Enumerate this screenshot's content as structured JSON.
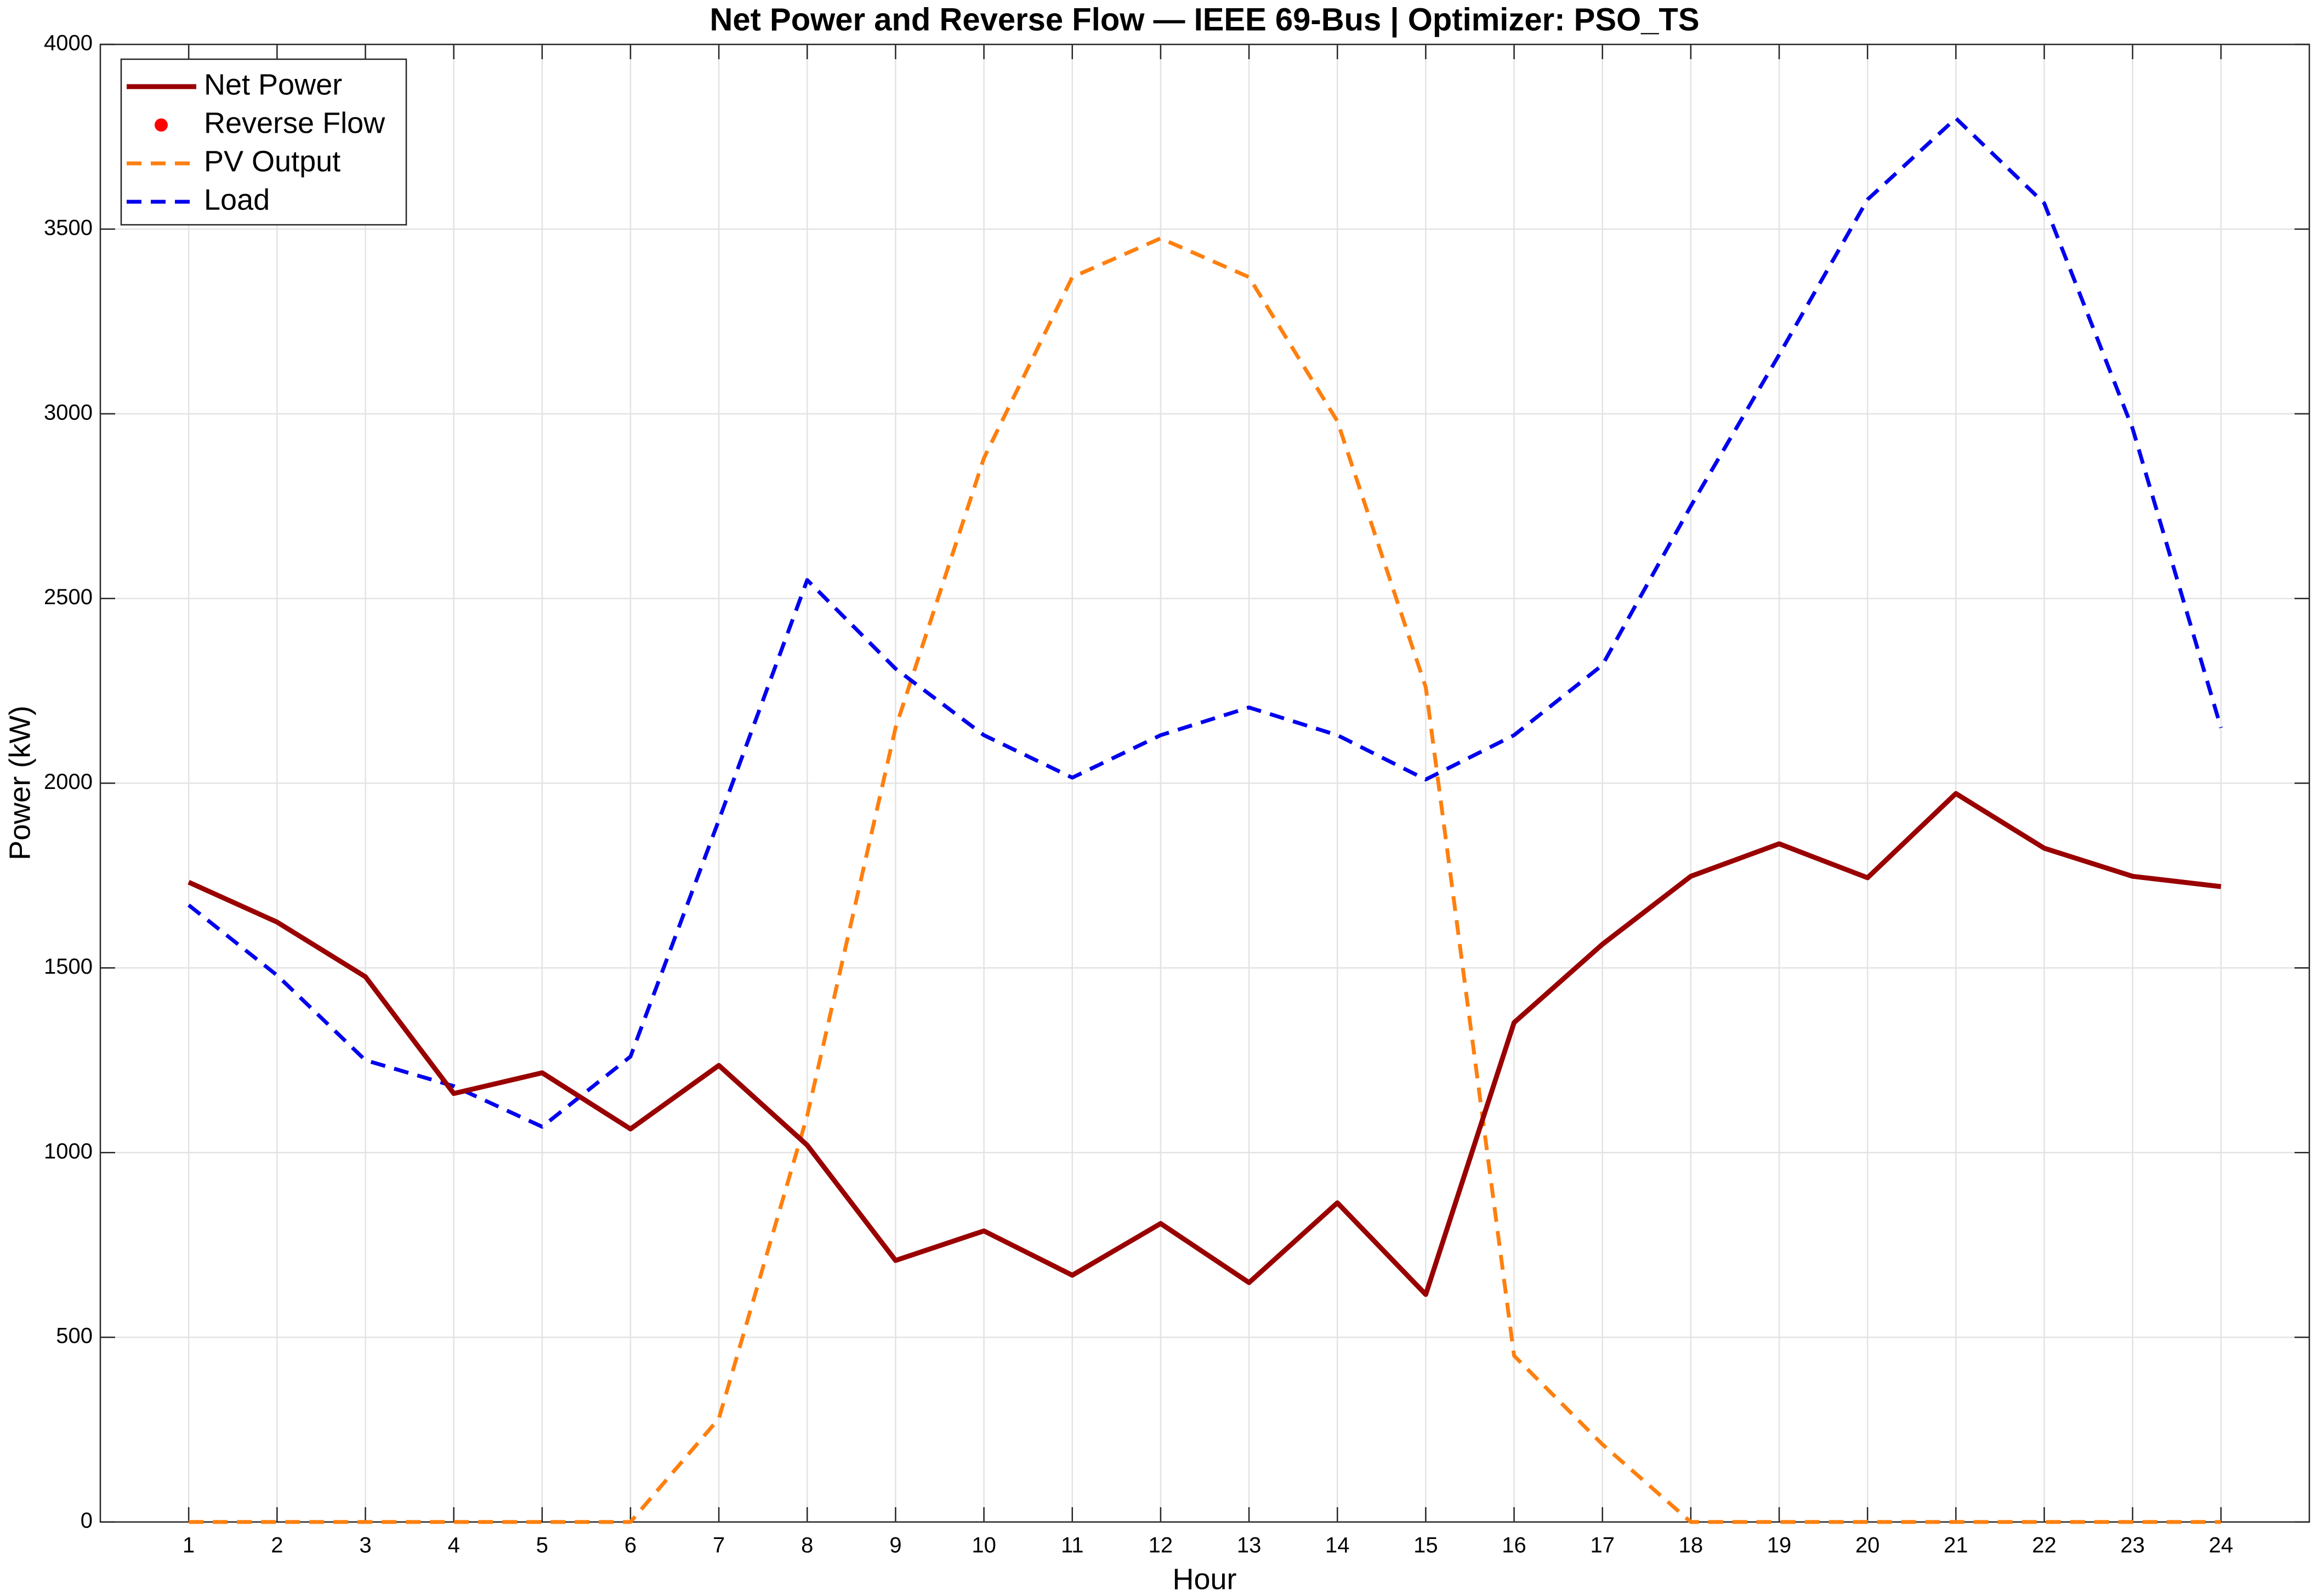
{
  "chart_data": {
    "type": "line",
    "title": "Net Power and Reverse Flow — IEEE 69-Bus | Optimizer: PSO_TS",
    "x_label": "Hour",
    "y_label": "Power (kW)",
    "x": [
      1,
      2,
      3,
      4,
      5,
      6,
      7,
      8,
      9,
      10,
      11,
      12,
      13,
      14,
      15,
      16,
      17,
      18,
      19,
      20,
      21,
      22,
      23,
      24
    ],
    "series": [
      {
        "name": "Net Power",
        "color": "#990000",
        "style": "solid",
        "values": [
          1732,
          1624,
          1476,
          1160,
          1216,
          1064,
          1236,
          1020,
          708,
          788,
          668,
          808,
          648,
          864,
          616,
          1352,
          1564,
          1748,
          1836,
          1744,
          1972,
          1824,
          1748,
          1720
        ]
      },
      {
        "name": "Reverse Flow",
        "color": "#ff0000",
        "style": "marker",
        "values": [
          null,
          null,
          null,
          null,
          null,
          null,
          null,
          null,
          null,
          null,
          null,
          null,
          null,
          null,
          null,
          null,
          null,
          null,
          null,
          null,
          null,
          null,
          null,
          null
        ]
      },
      {
        "name": "PV Output",
        "color": "#ff7f0e",
        "style": "dashed",
        "values": [
          0,
          0,
          0,
          0,
          0,
          0,
          280,
          1100,
          2150,
          2880,
          3370,
          3475,
          3370,
          2980,
          2260,
          450,
          210,
          0,
          0,
          0,
          0,
          0,
          0,
          0
        ]
      },
      {
        "name": "Load",
        "color": "#0000ee",
        "style": "dashed",
        "values": [
          1670,
          1480,
          1250,
          1180,
          1070,
          1260,
          1900,
          2550,
          2310,
          2130,
          2015,
          2130,
          2205,
          2130,
          2010,
          2130,
          2320,
          2750,
          3160,
          3580,
          3800,
          3570,
          2960,
          2150
        ]
      }
    ],
    "xlim": [
      0,
      25
    ],
    "xticks": [
      1,
      2,
      3,
      4,
      5,
      6,
      7,
      8,
      9,
      10,
      11,
      12,
      13,
      14,
      15,
      16,
      17,
      18,
      19,
      20,
      21,
      22,
      23,
      24
    ],
    "ylim": [
      0,
      4000
    ],
    "yticks": [
      0,
      500,
      1000,
      1500,
      2000,
      2500,
      3000,
      3500,
      4000
    ],
    "grid": true,
    "legend": "upper left"
  }
}
